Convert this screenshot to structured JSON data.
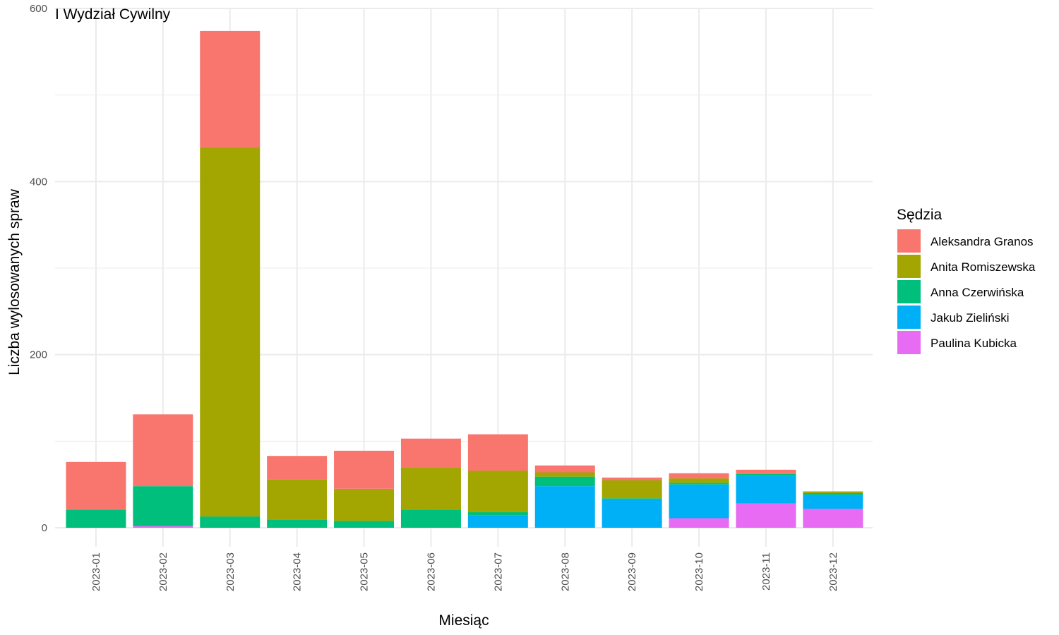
{
  "chart_data": {
    "type": "bar",
    "stacked": true,
    "title": "I Wydział Cywilny",
    "xlabel": "Miesiąc",
    "ylabel": "Liczba wylosowanych spraw",
    "ylim": [
      -22,
      600
    ],
    "yticks": [
      0,
      200,
      400,
      600
    ],
    "grid": true,
    "legend_position": "right",
    "legend_title": "Sędzia",
    "categories": [
      "2023-01",
      "2023-02",
      "2023-03",
      "2023-04",
      "2023-05",
      "2023-06",
      "2023-07",
      "2023-08",
      "2023-09",
      "2023-10",
      "2023-11",
      "2023-12"
    ],
    "series": [
      {
        "name": "Paulina Kubicka",
        "color": "#E76BF3",
        "values": [
          0,
          2,
          0,
          0,
          0,
          0,
          0,
          0,
          0,
          11,
          28,
          22
        ]
      },
      {
        "name": "Jakub Zieliński",
        "color": "#00B0F6",
        "values": [
          0,
          0,
          0,
          0,
          0,
          0,
          14,
          48,
          33,
          39,
          32,
          16
        ]
      },
      {
        "name": "Anna Czerwińska",
        "color": "#00BF7D",
        "values": [
          21,
          46,
          13,
          9,
          8,
          21,
          4,
          11,
          1,
          2,
          2,
          2
        ]
      },
      {
        "name": "Anita Romiszewska",
        "color": "#A3A500",
        "values": [
          0,
          0,
          426,
          47,
          37,
          49,
          48,
          5,
          21,
          5,
          1,
          2
        ]
      },
      {
        "name": "Aleksandra Granos",
        "color": "#F8766D",
        "values": [
          55,
          83,
          135,
          27,
          44,
          33,
          42,
          8,
          3,
          6,
          4,
          0
        ]
      }
    ]
  },
  "legend_order": [
    4,
    3,
    2,
    1,
    0
  ]
}
